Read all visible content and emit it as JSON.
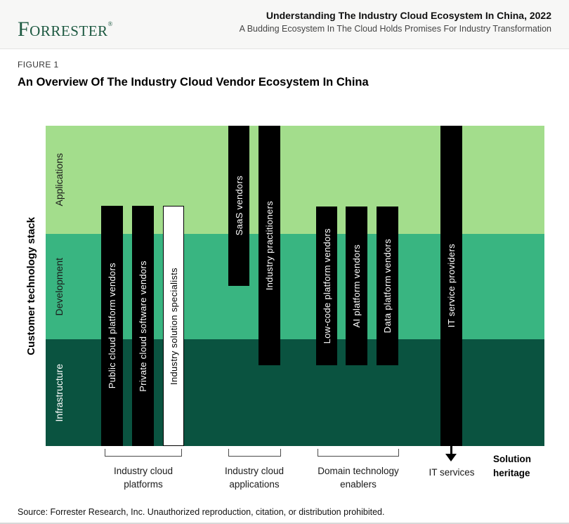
{
  "header": {
    "logo_text": "Forrester",
    "registered_mark": "®",
    "title": "Understanding The Industry Cloud Ecosystem In China, 2022",
    "subtitle": "A Budding Ecosystem In The Cloud Holds Promises For Industry Transformation"
  },
  "figure": {
    "label": "FIGURE 1",
    "title": "An Overview Of The Industry Cloud Vendor Ecosystem In China"
  },
  "stack": {
    "axis_label": "Customer technology stack",
    "bands": [
      {
        "name": "Applications",
        "color": "#a3dd8c",
        "text_color": "#1a1a1a"
      },
      {
        "name": "Development",
        "color": "#39b581",
        "text_color": "#1a1a1a"
      },
      {
        "name": "Infrastructure",
        "color": "#0a5340",
        "text_color": "#ffffff"
      }
    ]
  },
  "bars": [
    {
      "label": "Public cloud platform vendors",
      "group": "Industry cloud platforms",
      "style": "black",
      "covers": [
        "Applications (partial)",
        "Development",
        "Infrastructure"
      ]
    },
    {
      "label": "Private cloud software vendors",
      "group": "Industry cloud platforms",
      "style": "black",
      "covers": [
        "Applications (partial)",
        "Development",
        "Infrastructure"
      ]
    },
    {
      "label": "Industry solution specialists",
      "group": "Industry cloud platforms",
      "style": "white-outline",
      "covers": [
        "Applications (partial)",
        "Development",
        "Infrastructure"
      ]
    },
    {
      "label": "SaaS vendors",
      "group": "Industry cloud applications",
      "style": "black",
      "covers": [
        "Applications",
        "Development (partial)"
      ]
    },
    {
      "label": "Industry practitioners",
      "group": "Industry cloud applications",
      "style": "black",
      "covers": [
        "Applications",
        "Development",
        "Infrastructure (partial)"
      ]
    },
    {
      "label": "Low-code platform vendors",
      "group": "Domain technology enablers",
      "style": "black",
      "covers": [
        "Applications (partial)",
        "Development",
        "Infrastructure (partial)"
      ]
    },
    {
      "label": "AI platform vendors",
      "group": "Domain technology enablers",
      "style": "black",
      "covers": [
        "Applications (partial)",
        "Development",
        "Infrastructure (partial)"
      ]
    },
    {
      "label": "Data platform vendors",
      "group": "Domain technology enablers",
      "style": "black",
      "covers": [
        "Applications (partial)",
        "Development",
        "Infrastructure (partial)"
      ]
    },
    {
      "label": "IT service providers",
      "group": "IT services",
      "style": "black",
      "covers": [
        "Applications",
        "Development",
        "Infrastructure"
      ]
    }
  ],
  "groups": [
    {
      "label": "Industry cloud platforms",
      "bracket": true
    },
    {
      "label": "Industry cloud applications",
      "bracket": true
    },
    {
      "label": "Domain technology enablers",
      "bracket": true
    },
    {
      "label": "IT services",
      "bracket": false,
      "arrow": "down"
    }
  ],
  "solution_heritage": "Solution heritage",
  "source": "Source: Forrester Research, Inc. Unauthorized reproduction, citation, or distribution prohibited."
}
